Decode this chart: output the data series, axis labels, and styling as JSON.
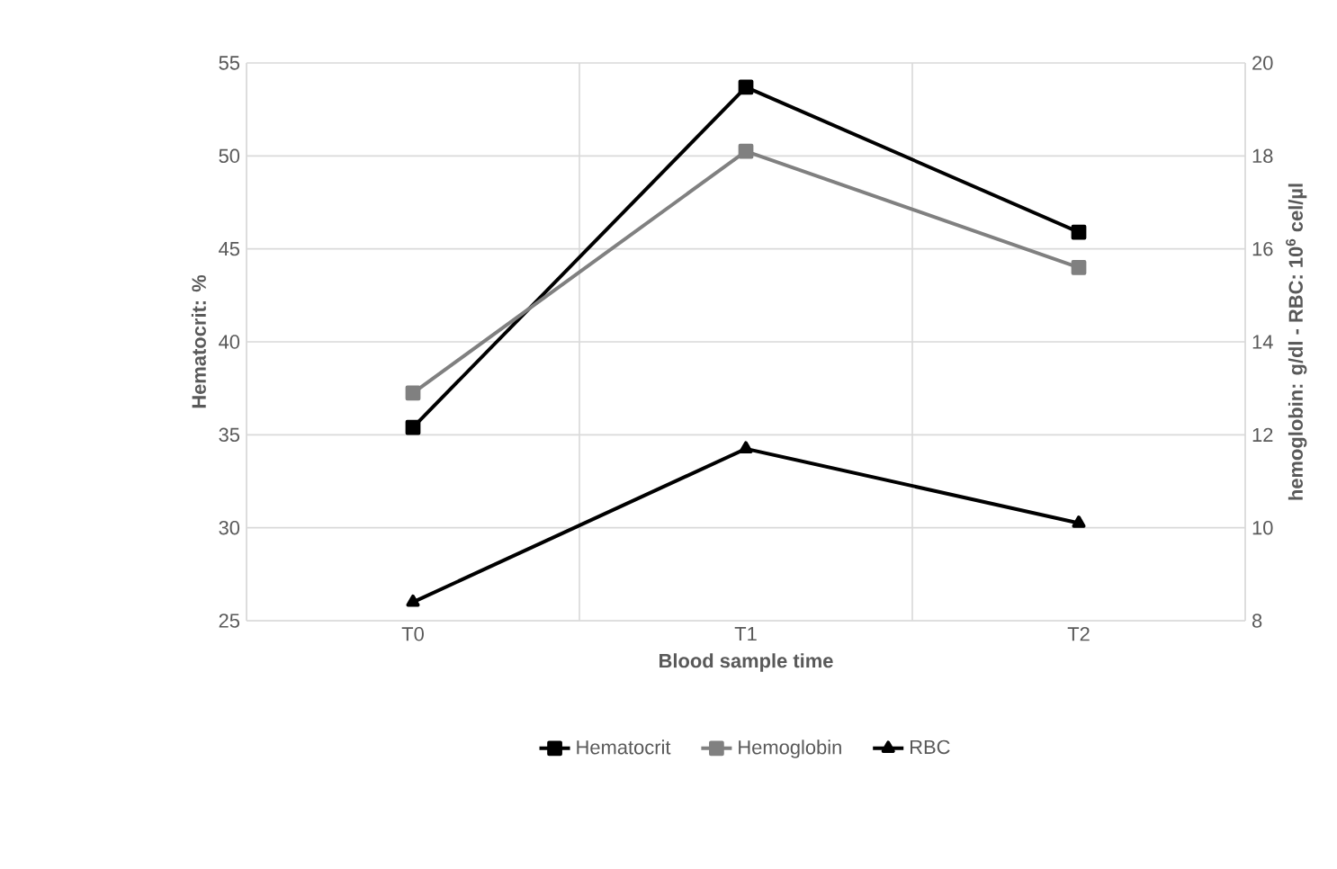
{
  "chart_data": {
    "type": "line",
    "xlabel": "Blood sample time",
    "ylabel": "Hematocrit: %",
    "y2label": "hemoglobin: g/dl - RBC: 10$^{6}$ cel/µl",
    "categories": [
      "T0",
      "T1",
      "T2"
    ],
    "series": [
      {
        "name": "Hematocrit",
        "color": "#000000",
        "marker": "square",
        "values": [
          35.4,
          53.7,
          45.9
        ]
      },
      {
        "name": "Hemoglobin",
        "color": "#808080",
        "marker": "square",
        "axis": "y2",
        "values": [
          12.9,
          18.1,
          15.6
        ]
      },
      {
        "name": "RBC",
        "color": "#000000",
        "marker": "triangle",
        "axis": "y2",
        "values": [
          8.4,
          11.7,
          10.1
        ]
      }
    ],
    "ylim": [
      25,
      55
    ],
    "yticks": [
      25,
      30,
      35,
      40,
      45,
      50,
      55
    ],
    "y2lim": [
      8,
      20
    ],
    "y2ticks": [
      8,
      10,
      12,
      14,
      16,
      18,
      20
    ],
    "grid": true,
    "legend": "bottom"
  }
}
